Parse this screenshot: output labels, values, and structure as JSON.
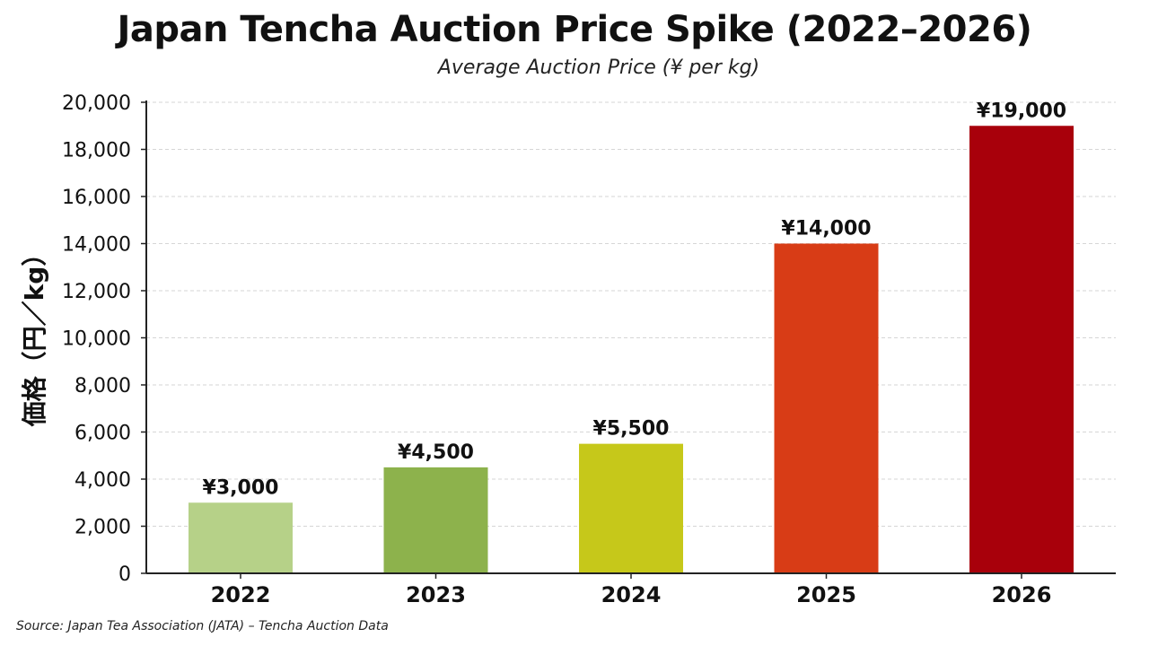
{
  "chart_data": {
    "type": "bar",
    "title": "Japan Tencha Auction Price Spike (2022–2026)",
    "subtitle": "Average Auction Price (¥ per kg)",
    "ylabel": "価格（円／kg）",
    "xlabel": "",
    "categories": [
      "2022",
      "2023",
      "2024",
      "2025",
      "2026"
    ],
    "values": [
      3000,
      4500,
      5500,
      14000,
      19000
    ],
    "data_labels": [
      "¥3,000",
      "¥4,500",
      "¥5,500",
      "¥14,000",
      "¥19,000"
    ],
    "bar_colors": [
      "#b6d188",
      "#8db24c",
      "#c6c81a",
      "#d83c16",
      "#a8000b"
    ],
    "ylim": [
      0,
      20000
    ],
    "yticks": [
      0,
      2000,
      4000,
      6000,
      8000,
      10000,
      12000,
      14000,
      16000,
      18000,
      20000
    ],
    "ytick_labels": [
      "0",
      "2,000",
      "4,000",
      "6,000",
      "8,000",
      "10,000",
      "12,000",
      "14,000",
      "16,000",
      "18,000",
      "20,000"
    ],
    "grid": true,
    "legend": "none"
  },
  "source": "Source: Japan Tea Association (JATA) – Tencha Auction Data"
}
